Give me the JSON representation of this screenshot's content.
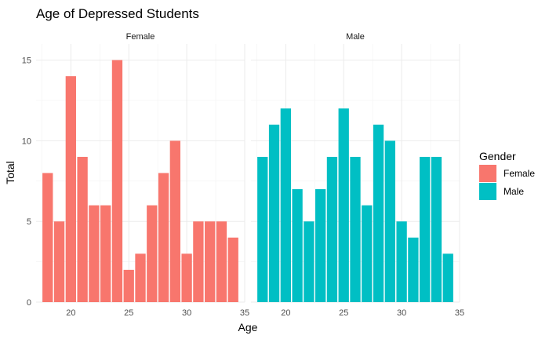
{
  "chart_data": {
    "type": "bar",
    "title": "Age of Depressed Students",
    "xlabel": "Age",
    "ylabel": "Total",
    "xlim": [
      17,
      35
    ],
    "ylim": [
      0,
      16
    ],
    "x_ticks": [
      20,
      25,
      30,
      35
    ],
    "y_ticks": [
      0,
      5,
      10,
      15
    ],
    "grid": true,
    "legend": {
      "title": "Gender",
      "position": "right",
      "entries": [
        {
          "label": "Female",
          "color": "#F8766D"
        },
        {
          "label": "Male",
          "color": "#00BFC4"
        }
      ]
    },
    "facets": [
      {
        "name": "Female",
        "color": "#F8766D",
        "x": [
          18,
          19,
          20,
          21,
          22,
          23,
          24,
          25,
          26,
          27,
          28,
          29,
          30,
          31,
          32,
          33,
          34
        ],
        "values": [
          8,
          5,
          14,
          9,
          6,
          6,
          15,
          2,
          3,
          6,
          8,
          10,
          3,
          5,
          5,
          5,
          4
        ]
      },
      {
        "name": "Male",
        "color": "#00BFC4",
        "x": [
          18,
          19,
          20,
          21,
          22,
          23,
          24,
          25,
          26,
          27,
          28,
          29,
          30,
          31,
          32,
          33,
          34
        ],
        "values": [
          9,
          11,
          12,
          7,
          5,
          7,
          9,
          12,
          9,
          6,
          11,
          10,
          5,
          4,
          9,
          9,
          3
        ]
      }
    ]
  }
}
